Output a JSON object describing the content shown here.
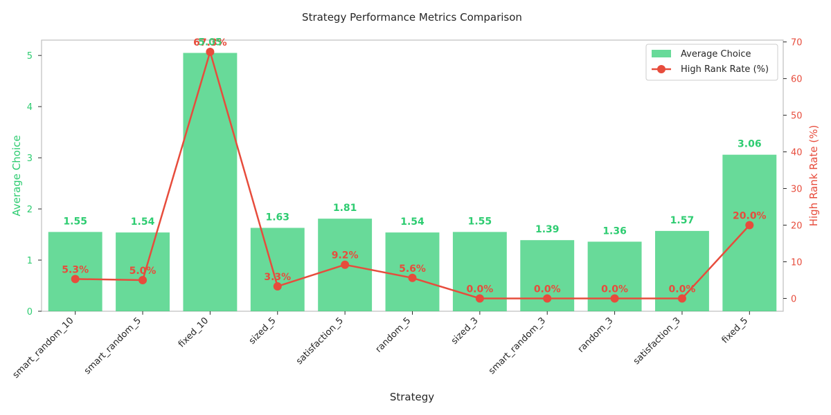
{
  "chart_data": {
    "type": "bar",
    "title": "Strategy Performance Metrics Comparison",
    "xlabel": "Strategy",
    "ylabel_left": "Average Choice",
    "ylabel_right": "High Rank Rate (%)",
    "categories": [
      "smart_random_10",
      "smart_random_5",
      "fixed_10",
      "sized_5",
      "satisfaction_5",
      "random_5",
      "sized_3",
      "smart_random_3",
      "random_3",
      "satisfaction_3",
      "fixed_5"
    ],
    "series": [
      {
        "name": "Average Choice",
        "type": "bar",
        "axis": "left",
        "color": "#2ecc71",
        "values": [
          1.55,
          1.54,
          5.05,
          1.63,
          1.81,
          1.54,
          1.55,
          1.39,
          1.36,
          1.57,
          3.06
        ],
        "labels": [
          "1.55",
          "1.54",
          "",
          "1.63",
          "1.81",
          "1.54",
          "1.55",
          "1.39",
          "1.36",
          "1.57",
          "3.06"
        ]
      },
      {
        "name": "High Rank Rate (%)",
        "type": "line",
        "axis": "right",
        "color": "#e74c3c",
        "values": [
          5.3,
          5.0,
          67.3,
          3.3,
          9.2,
          5.6,
          0.0,
          0.0,
          0.0,
          0.0,
          20.0
        ],
        "labels": [
          "5.3%",
          "5.0%",
          "67.3%",
          "3.3%",
          "9.2%",
          "5.6%",
          "0.0%",
          "0.0%",
          "0.0%",
          "0.0%",
          "20.0%"
        ]
      }
    ],
    "ylim_left": [
      0,
      5.3
    ],
    "yticks_left": [
      0,
      1,
      2,
      3,
      4,
      5
    ],
    "ylim_right": [
      -3.5,
      70.5
    ],
    "yticks_right": [
      0,
      10,
      20,
      30,
      40,
      50,
      60,
      70
    ],
    "grid": false,
    "legend_position": "top-right"
  }
}
